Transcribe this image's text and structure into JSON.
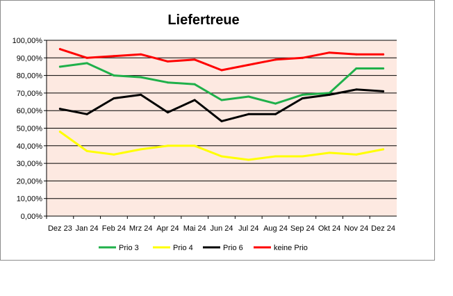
{
  "chart_data": {
    "type": "line",
    "title": "Liefertreue",
    "xlabel": "",
    "ylabel": "",
    "ylim": [
      0,
      100
    ],
    "y_tick_step": 10,
    "y_tick_format": "percent-2-decimals-comma",
    "grid": true,
    "plot_background": "#fde9e1",
    "gridline_color": "#000000",
    "legend_position": "bottom",
    "categories": [
      "Dez 23",
      "Jan 24",
      "Feb 24",
      "Mrz 24",
      "Apr 24",
      "Mai 24",
      "Jun 24",
      "Jul 24",
      "Aug 24",
      "Sep 24",
      "Okt 24",
      "Nov 24",
      "Dez 24"
    ],
    "y_tick_labels": [
      "0,00%",
      "10,00%",
      "20,00%",
      "30,00%",
      "40,00%",
      "50,00%",
      "60,00%",
      "70,00%",
      "80,00%",
      "90,00%",
      "100,00%"
    ],
    "series": [
      {
        "name": "Prio 3",
        "color": "#1fb04a",
        "values": [
          85,
          87,
          80,
          79,
          76,
          75,
          66,
          68,
          64,
          69,
          70,
          84,
          84
        ]
      },
      {
        "name": "Prio 4",
        "color": "#ffff00",
        "values": [
          48,
          37,
          35,
          38,
          40,
          40,
          34,
          32,
          34,
          34,
          36,
          35,
          38
        ]
      },
      {
        "name": "Prio 6",
        "color": "#000000",
        "values": [
          61,
          58,
          67,
          69,
          59,
          66,
          54,
          58,
          58,
          67,
          69,
          72,
          71
        ]
      },
      {
        "name": "keine Prio",
        "color": "#ff0000",
        "values": [
          95,
          90,
          91,
          92,
          88,
          89,
          83,
          86,
          89,
          90,
          93,
          92,
          92
        ]
      }
    ]
  }
}
